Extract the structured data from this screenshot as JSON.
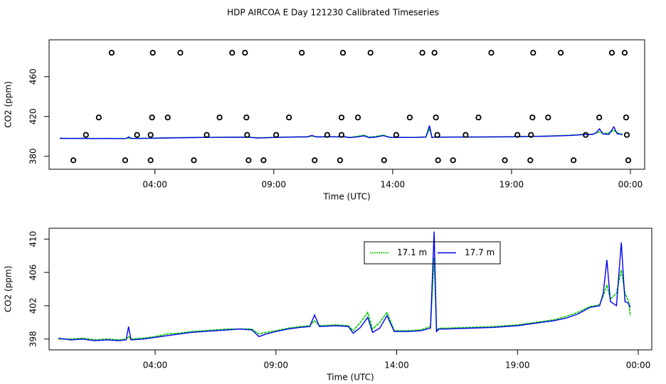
{
  "chart_data": [
    {
      "type": "scatter",
      "title": "HDP AIRCOA E  Day 121230  Calibrated Timeseries",
      "xlabel": "Time (UTC)",
      "ylabel": "CO2 (ppm)",
      "xlim": [
        -0.45,
        24.6
      ],
      "ylim": [
        367,
        497
      ],
      "xticks": [
        {
          "value": 4,
          "label": "04:00"
        },
        {
          "value": 9,
          "label": "09:00"
        },
        {
          "value": 14,
          "label": "14:00"
        },
        {
          "value": 19,
          "label": "19:00"
        },
        {
          "value": 24,
          "label": "00:00"
        }
      ],
      "yticks": [
        380,
        420,
        460
      ],
      "points": {
        "color": "#000000",
        "x": [
          2.18,
          3.91,
          5.07,
          7.25,
          7.79,
          10.18,
          11.91,
          13.07,
          15.25,
          15.76,
          18.15,
          19.91,
          21.07,
          23.22,
          23.76,
          1.64,
          3.88,
          4.54,
          6.72,
          7.85,
          9.64,
          11.85,
          12.54,
          14.72,
          15.82,
          17.61,
          19.88,
          20.54,
          22.69,
          23.82,
          1.1,
          3.25,
          3.82,
          6.18,
          7.88,
          9.1,
          11.25,
          11.85,
          14.15,
          15.88,
          17.07,
          19.25,
          19.82,
          22.12,
          23.85,
          0.57,
          2.75,
          3.82,
          5.64,
          7.94,
          8.57,
          10.72,
          11.79,
          13.64,
          15.91,
          16.54,
          18.72,
          19.79,
          21.61,
          23.91
        ],
        "values": [
          484,
          484,
          484,
          484,
          484,
          484,
          484,
          484,
          484,
          484,
          484,
          484,
          484,
          484,
          484,
          419,
          419,
          419,
          419,
          419,
          419,
          419,
          419,
          419,
          419,
          419,
          419,
          419,
          419,
          419,
          401.5,
          401.5,
          401.5,
          401.5,
          401.5,
          401.5,
          401.5,
          401.5,
          401.5,
          401.5,
          401.5,
          401.5,
          401.5,
          401.5,
          401.5,
          376,
          376,
          376,
          376,
          376,
          376,
          376,
          376,
          376,
          376,
          376,
          376,
          376,
          376,
          376
        ]
      },
      "x": [
        0,
        0.5,
        1,
        1.5,
        2,
        2.5,
        2.8,
        2.9,
        3.0,
        3.5,
        4,
        4.5,
        5,
        5.5,
        6,
        6.5,
        7,
        7.5,
        8,
        8.3,
        8.6,
        9,
        9.5,
        10,
        10.4,
        10.6,
        10.8,
        11.5,
        12,
        12.2,
        12.5,
        12.8,
        13,
        13.3,
        13.6,
        13.9,
        14.5,
        15,
        15.4,
        15.55,
        15.65,
        15.75,
        16,
        17,
        18,
        19,
        20,
        20.5,
        21,
        21.5,
        22,
        22.4,
        22.55,
        22.7,
        22.85,
        23.1,
        23.3,
        23.45,
        23.6,
        23.67
      ],
      "series": [
        {
          "name": "17.1 m",
          "color": "#00cc00",
          "values": [
            398.0,
            398.0,
            398.1,
            397.9,
            398.0,
            397.9,
            398.0,
            398.3,
            398.0,
            398.1,
            398.3,
            398.6,
            398.7,
            398.9,
            399.0,
            399.1,
            399.2,
            399.2,
            399.2,
            398.6,
            398.8,
            399.0,
            399.3,
            399.5,
            399.6,
            400.2,
            399.6,
            399.7,
            399.6,
            399.0,
            400.0,
            401.2,
            399.2,
            400.0,
            401.2,
            399.0,
            399.0,
            399.1,
            399.5,
            407.8,
            399.0,
            399.3,
            399.3,
            399.4,
            399.5,
            399.7,
            400.1,
            400.3,
            400.7,
            401.2,
            401.9,
            402.1,
            403.2,
            404.5,
            402.8,
            403.5,
            406.3,
            403.5,
            402.5,
            400.8
          ]
        },
        {
          "name": "17.7 m",
          "color": "#0000ee",
          "values": [
            398.1,
            397.9,
            398.0,
            397.8,
            397.9,
            397.8,
            397.9,
            399.5,
            397.9,
            398.0,
            398.2,
            398.4,
            398.6,
            398.8,
            398.9,
            399.0,
            399.1,
            399.2,
            399.1,
            398.3,
            398.6,
            398.9,
            399.2,
            399.4,
            399.5,
            400.9,
            399.5,
            399.6,
            399.5,
            398.7,
            399.4,
            400.6,
            398.8,
            399.3,
            400.8,
            398.9,
            398.9,
            399.0,
            399.3,
            410.9,
            398.9,
            399.2,
            399.2,
            399.3,
            399.4,
            399.6,
            400.0,
            400.2,
            400.5,
            401.0,
            401.8,
            402.0,
            403.5,
            407.5,
            402.5,
            402.0,
            409.6,
            402.5,
            402.3,
            401.8
          ]
        }
      ]
    },
    {
      "type": "line",
      "xlabel": "Time (UTC)",
      "ylabel": "CO2 (ppm)",
      "xlim": [
        -0.39,
        24.56
      ],
      "ylim": [
        396.7,
        411.3
      ],
      "xticks": [
        {
          "value": 4,
          "label": "04:00"
        },
        {
          "value": 9,
          "label": "09:00"
        },
        {
          "value": 14,
          "label": "14:00"
        },
        {
          "value": 19,
          "label": "19:00"
        },
        {
          "value": 24,
          "label": "00:00"
        }
      ],
      "yticks": [
        398,
        402,
        406,
        410
      ],
      "legend": "top",
      "x": [
        0,
        0.5,
        1,
        1.5,
        2,
        2.5,
        2.8,
        2.9,
        3.0,
        3.5,
        4,
        4.5,
        5,
        5.5,
        6,
        6.5,
        7,
        7.5,
        8,
        8.3,
        8.6,
        9,
        9.5,
        10,
        10.4,
        10.6,
        10.8,
        11.5,
        12,
        12.2,
        12.5,
        12.8,
        13,
        13.3,
        13.6,
        13.9,
        14.5,
        15,
        15.4,
        15.55,
        15.65,
        15.75,
        16,
        17,
        18,
        19,
        20,
        20.5,
        21,
        21.5,
        22,
        22.4,
        22.55,
        22.7,
        22.85,
        23.1,
        23.3,
        23.45,
        23.6,
        23.67
      ],
      "series": [
        {
          "name": "17.1 m",
          "color": "#00cc00",
          "values": [
            398.0,
            398.0,
            398.1,
            397.9,
            398.0,
            397.9,
            398.0,
            398.3,
            398.0,
            398.1,
            398.3,
            398.6,
            398.7,
            398.9,
            399.0,
            399.1,
            399.2,
            399.2,
            399.2,
            398.6,
            398.8,
            399.0,
            399.3,
            399.5,
            399.6,
            400.2,
            399.6,
            399.7,
            399.6,
            399.0,
            400.0,
            401.2,
            399.2,
            400.0,
            401.2,
            399.0,
            399.0,
            399.1,
            399.5,
            407.8,
            399.0,
            399.3,
            399.3,
            399.4,
            399.5,
            399.7,
            400.1,
            400.3,
            400.7,
            401.2,
            401.9,
            402.1,
            403.2,
            404.5,
            402.8,
            403.5,
            406.3,
            403.5,
            402.5,
            400.8
          ]
        },
        {
          "name": "17.7 m",
          "color": "#0000ee",
          "values": [
            398.1,
            397.9,
            398.0,
            397.8,
            397.9,
            397.8,
            397.9,
            399.5,
            397.9,
            398.0,
            398.2,
            398.4,
            398.6,
            398.8,
            398.9,
            399.0,
            399.1,
            399.2,
            399.1,
            398.3,
            398.6,
            398.9,
            399.2,
            399.4,
            399.5,
            400.9,
            399.5,
            399.6,
            399.5,
            398.7,
            399.4,
            400.6,
            398.8,
            399.3,
            400.8,
            398.9,
            398.9,
            399.0,
            399.3,
            410.9,
            398.9,
            399.2,
            399.2,
            399.3,
            399.4,
            399.6,
            400.0,
            400.2,
            400.5,
            401.0,
            401.8,
            402.0,
            403.5,
            407.5,
            402.5,
            402.0,
            409.6,
            402.5,
            402.3,
            401.8
          ]
        }
      ]
    }
  ]
}
